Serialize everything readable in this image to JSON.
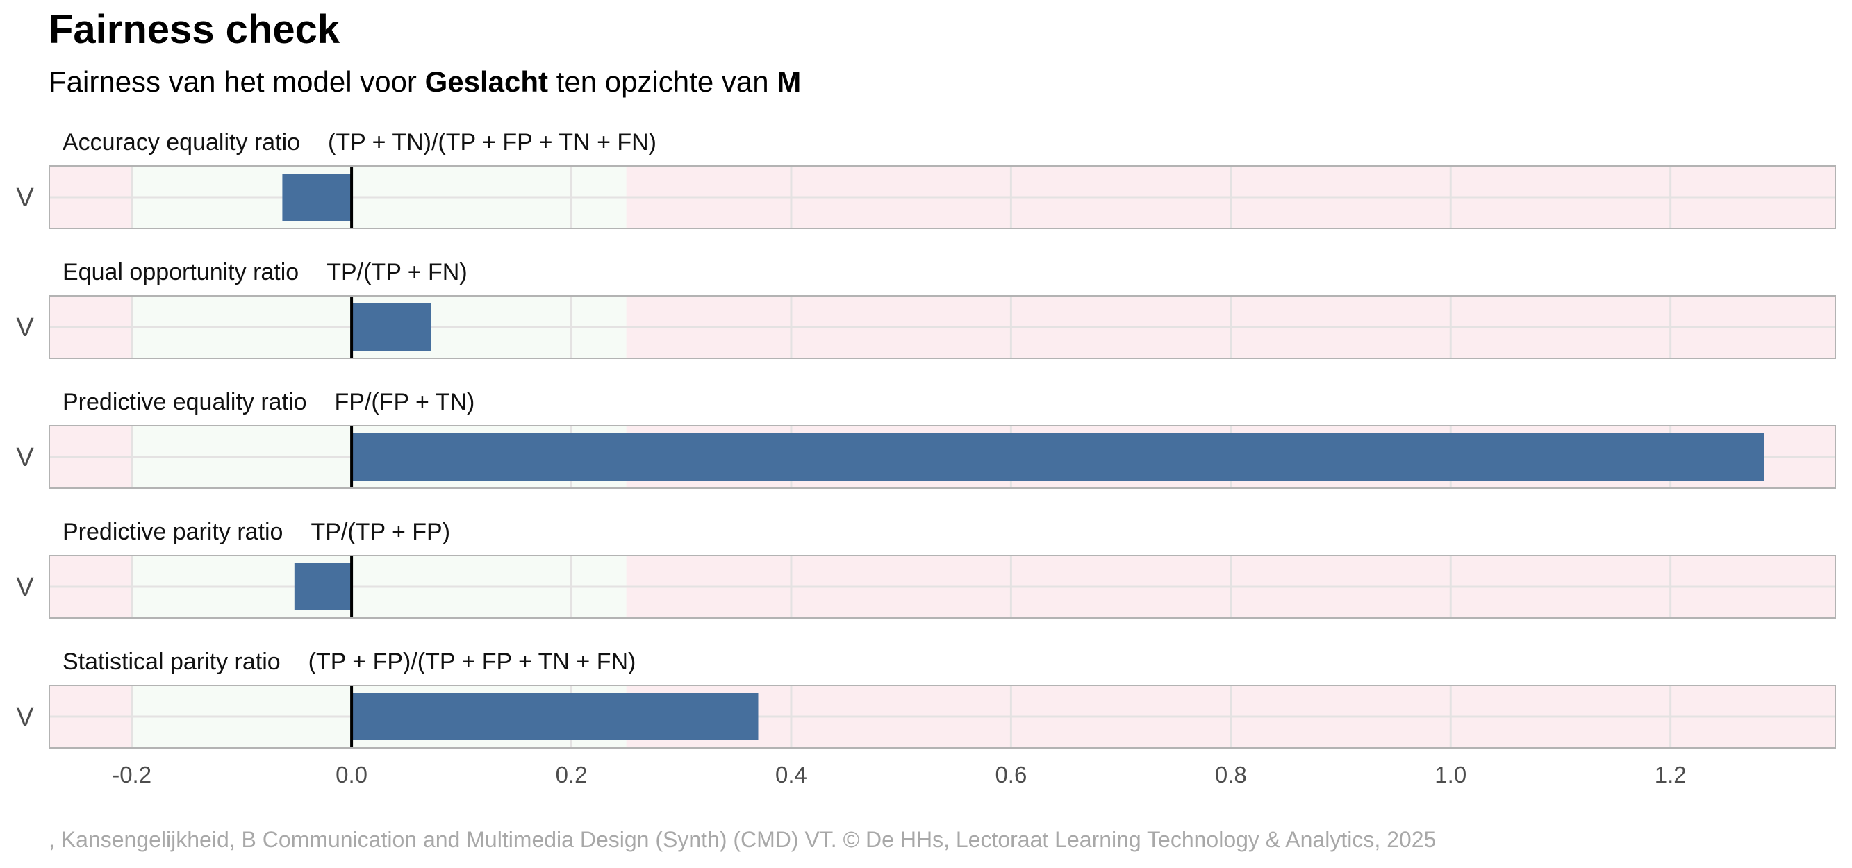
{
  "chart_data": {
    "type": "bar",
    "orientation": "horizontal",
    "title": "Fairness check",
    "subtitle": {
      "prefix": "Fairness van het model voor ",
      "variable": "Geslacht",
      "middle": " ten opzichte van ",
      "reference": "M"
    },
    "category": "V",
    "xlim": [
      -0.275,
      1.35
    ],
    "x_ticks": [
      -0.2,
      0.0,
      0.2,
      0.4,
      0.6,
      0.8,
      1.0,
      1.2
    ],
    "x_tick_labels": [
      "-0.2",
      "0.0",
      "0.2",
      "0.4",
      "0.6",
      "0.8",
      "1.0",
      "1.2"
    ],
    "grid": true,
    "fair_band": [
      -0.2,
      0.25
    ],
    "colors": {
      "bar": "#466f9d",
      "fair_band": "#f6fbf6",
      "unfair_band": "#fcedf0",
      "grid": "#e4e2e2",
      "panel_border": "#b3b3b3",
      "zero_line": "#000000"
    },
    "panels": [
      {
        "metric": "Accuracy equality ratio",
        "formula": "(TP + TN)/(TP + FP + TN + FN)",
        "value": -0.063
      },
      {
        "metric": "Equal opportunity ratio",
        "formula": "TP/(TP + FN)",
        "value": 0.072
      },
      {
        "metric": "Predictive equality ratio",
        "formula": "FP/(FP + TN)",
        "value": 1.285
      },
      {
        "metric": "Predictive parity ratio",
        "formula": "TP/(TP + FP)",
        "value": -0.052
      },
      {
        "metric": "Statistical parity ratio",
        "formula": "(TP + FP)/(TP + FP + TN + FN)",
        "value": 0.37
      }
    ],
    "caption": ", Kansengelijkheid, B Communication and Multimedia Design (Synth) (CMD) VT. © De HHs, Lectoraat Learning Technology & Analytics, 2025"
  }
}
